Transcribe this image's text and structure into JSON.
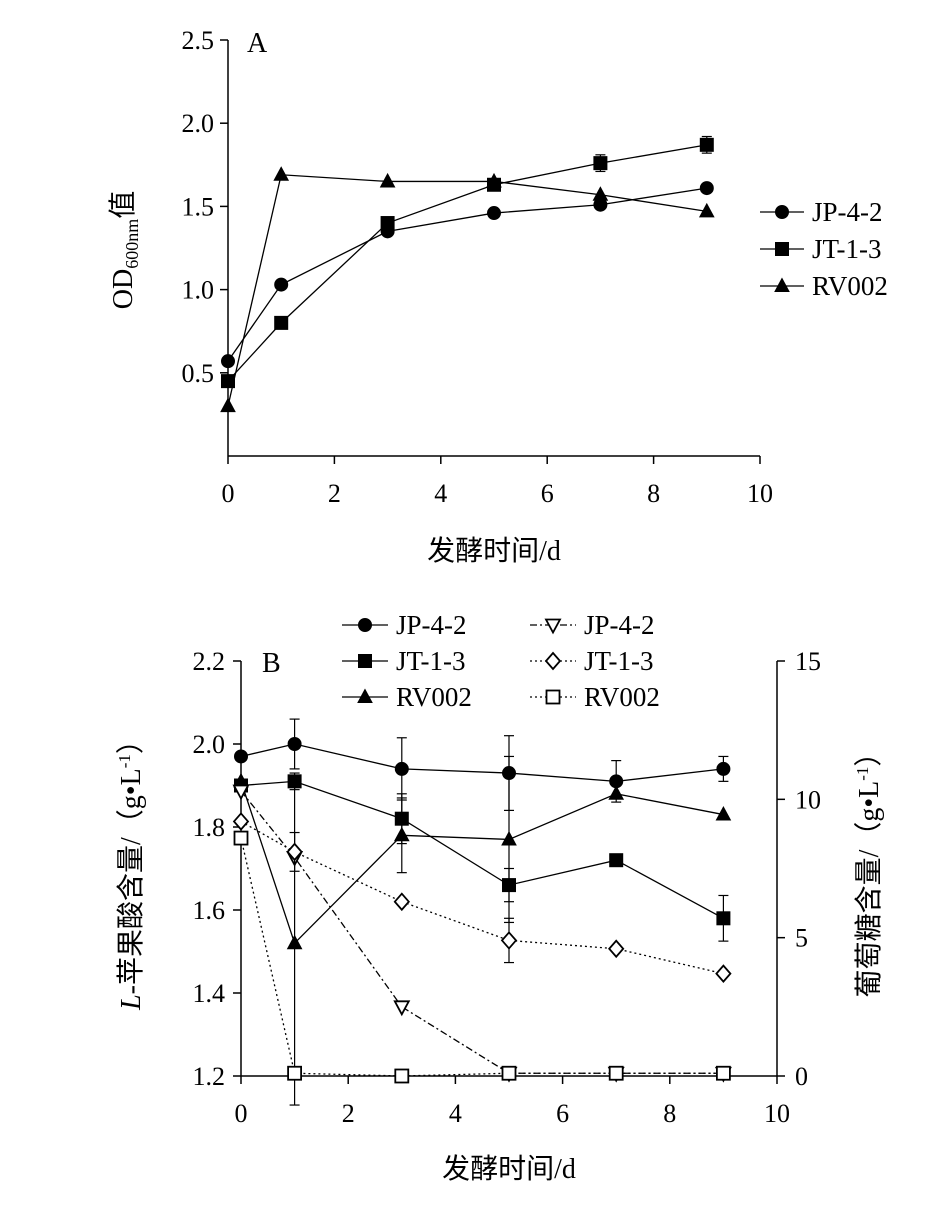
{
  "chart_data": [
    {
      "panel": "A",
      "type": "line",
      "xlabel": "发酵时间/d",
      "ylabel_main": "OD",
      "ylabel_sub": "600nm",
      "ylabel_suffix": "值",
      "xlim": [
        0,
        10
      ],
      "ylim": [
        0,
        2.5
      ],
      "xticks": [
        0,
        2,
        4,
        6,
        8,
        10
      ],
      "yticks": [
        0.5,
        1.0,
        1.5,
        2.0,
        2.5
      ],
      "ytick_labels": [
        "0.5",
        "1.0",
        "1.5",
        "2.0",
        "2.5"
      ],
      "legend_position": "right",
      "series": [
        {
          "name": "JP-4-2",
          "marker": "circle",
          "fill": "filled",
          "line": "solid",
          "x": [
            0,
            1,
            3,
            5,
            7,
            9
          ],
          "y": [
            0.57,
            1.03,
            1.35,
            1.46,
            1.51,
            1.61
          ],
          "err": [
            0,
            0,
            0,
            0,
            0.02,
            0
          ]
        },
        {
          "name": "JT-1-3",
          "marker": "square",
          "fill": "filled",
          "line": "solid",
          "x": [
            0,
            1,
            3,
            5,
            7,
            9
          ],
          "y": [
            0.45,
            0.8,
            1.4,
            1.63,
            1.76,
            1.87
          ],
          "err": [
            0,
            0,
            0.03,
            0.02,
            0.05,
            0.05
          ]
        },
        {
          "name": "RV002",
          "marker": "triangle",
          "fill": "filled",
          "line": "solid",
          "x": [
            0,
            1,
            3,
            5,
            7,
            9
          ],
          "y": [
            0.3,
            1.69,
            1.65,
            1.65,
            1.57,
            1.47
          ],
          "err": [
            0,
            0,
            0,
            0,
            0,
            0
          ]
        }
      ]
    },
    {
      "panel": "B",
      "type": "line",
      "xlabel": "发酵时间/d",
      "ylabel_left": "L-苹果酸含量/（g•L-1）",
      "ylabel_left_italic": "L",
      "ylabel_left_rest": "-苹果酸含量/（g•L",
      "ylabel_left_sup": "-1",
      "ylabel_left_close": "）",
      "ylabel_right": "葡萄糖含量/（g•L-1）",
      "ylabel_right_rest": "葡萄糖含量/（g•L",
      "ylabel_right_sup": "-1",
      "ylabel_right_close": "）",
      "xlim": [
        0,
        10
      ],
      "ylim_left": [
        1.2,
        2.2
      ],
      "ylim_right": [
        0,
        15
      ],
      "xticks": [
        0,
        2,
        4,
        6,
        8,
        10
      ],
      "yticks_left": [
        1.2,
        1.4,
        1.6,
        1.8,
        2.0,
        2.2
      ],
      "ytick_labels_left": [
        "1.2",
        "1.4",
        "1.6",
        "1.8",
        "2.0",
        "2.2"
      ],
      "yticks_right": [
        0,
        5,
        10,
        15
      ],
      "legend_position": "top",
      "series": [
        {
          "name": "JP-4-2",
          "axis": "left",
          "marker": "circle",
          "fill": "filled",
          "line": "solid",
          "x": [
            0,
            1,
            3,
            5,
            7,
            9
          ],
          "y": [
            1.97,
            2.0,
            1.94,
            1.93,
            1.91,
            1.94
          ],
          "err": [
            0,
            0.06,
            0.075,
            0.09,
            0.05,
            0.03
          ]
        },
        {
          "name": "JT-1-3",
          "axis": "left",
          "marker": "square",
          "fill": "filled",
          "line": "solid",
          "x": [
            0,
            1,
            3,
            5,
            7,
            9
          ],
          "y": [
            1.9,
            1.91,
            1.82,
            1.66,
            1.72,
            1.58
          ],
          "err": [
            0,
            0.02,
            0.06,
            0.04,
            0,
            0.055
          ]
        },
        {
          "name": "RV002",
          "axis": "left",
          "marker": "triangle",
          "fill": "filled",
          "line": "solid",
          "x": [
            0,
            1,
            3,
            5,
            7,
            9
          ],
          "y": [
            1.91,
            1.52,
            1.78,
            1.77,
            1.88,
            1.83
          ],
          "err": [
            0,
            0.39,
            0.09,
            0.2,
            0,
            0
          ]
        },
        {
          "name": "JP-4-2",
          "axis": "right",
          "marker": "triangle-down",
          "fill": "open",
          "line": "dash-dot",
          "x": [
            0,
            1,
            3,
            5,
            7,
            9
          ],
          "y": [
            10.3,
            7.9,
            2.5,
            0.1,
            0.1,
            0.1
          ],
          "err": [
            0,
            0,
            0,
            0,
            0,
            0
          ]
        },
        {
          "name": "JT-1-3",
          "axis": "right",
          "marker": "diamond",
          "fill": "open",
          "line": "dotted",
          "x": [
            0,
            1,
            3,
            5,
            7,
            9
          ],
          "y": [
            9.2,
            8.1,
            6.3,
            4.9,
            4.6,
            3.7
          ],
          "err": [
            0,
            0.7,
            0,
            0.8,
            0,
            0
          ]
        },
        {
          "name": "RV002",
          "axis": "right",
          "marker": "square",
          "fill": "open",
          "line": "dotted",
          "x": [
            0,
            1,
            3,
            5,
            7,
            9
          ],
          "y": [
            8.6,
            0.1,
            0.0,
            0.1,
            0.1,
            0.1
          ],
          "err": [
            0,
            0,
            0,
            0,
            0,
            0
          ]
        }
      ]
    }
  ]
}
